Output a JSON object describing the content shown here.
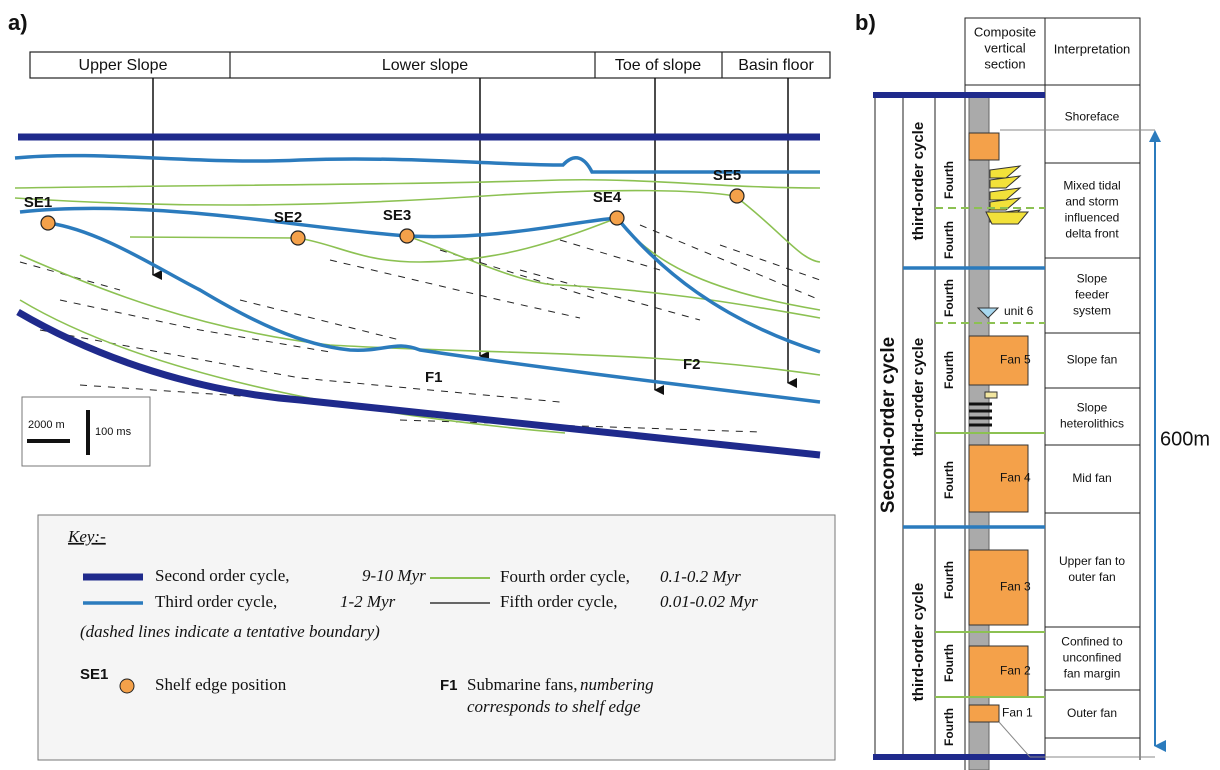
{
  "panel_a": {
    "label": "a)",
    "zones": [
      "Upper Slope",
      "Lower slope",
      "Toe of slope",
      "Basin floor"
    ],
    "shelf_edges": [
      "SE1",
      "SE2",
      "SE3",
      "SE4",
      "SE5"
    ],
    "fans": [
      "F1",
      "F2"
    ],
    "scale": {
      "horizontal": "2000 m",
      "vertical": "100 ms"
    },
    "key": {
      "title": "Key:-",
      "items": [
        {
          "label": "Second order cycle,",
          "duration": "9-10 Myr"
        },
        {
          "label": "Third order cycle,",
          "duration": "1-2 Myr"
        },
        {
          "label": "Fourth order cycle,",
          "duration": "0.1-0.2 Myr"
        },
        {
          "label": "Fifth order cycle,",
          "duration": "0.01-0.02 Myr"
        }
      ],
      "note": "(dashed lines indicate a tentative boundary)",
      "shelf_edge": {
        "symbol": "SE1",
        "text": "Shelf edge position"
      },
      "fan": {
        "symbol": "F1",
        "text": "Submarine fans,",
        "detail": [
          "numbering",
          "corresponds to shelf edge"
        ]
      }
    }
  },
  "panel_b": {
    "label": "b)",
    "headers": [
      [
        "Composite",
        "vertical",
        "section"
      ],
      [
        "Interpretation"
      ]
    ],
    "second_order": "Second-order cycle",
    "third_order": [
      "third-order cycle",
      "third-order cycle",
      "third-order cycle"
    ],
    "fourth_order": [
      "Fourth",
      "Fourth",
      "Fourth",
      "Fourth",
      "Fourth",
      "Fourth",
      "Fourth",
      "Fourth"
    ],
    "units": [
      "Fan 5",
      "Fan 4",
      "Fan 3",
      "Fan 2",
      "Fan 1",
      "unit 6"
    ],
    "interpretations": [
      [
        "Shoreface"
      ],
      [
        "Mixed tidal",
        "and storm",
        "influenced",
        "delta front"
      ],
      [
        "Slope",
        "feeder",
        "system"
      ],
      [
        "Slope fan"
      ],
      [
        "Slope",
        "heterolithics"
      ],
      [
        "Mid fan"
      ],
      [
        "Upper fan to",
        "outer fan"
      ],
      [
        "Confined to",
        "unconfined",
        "fan margin"
      ],
      [
        "Outer fan"
      ]
    ],
    "thickness": "600m"
  }
}
